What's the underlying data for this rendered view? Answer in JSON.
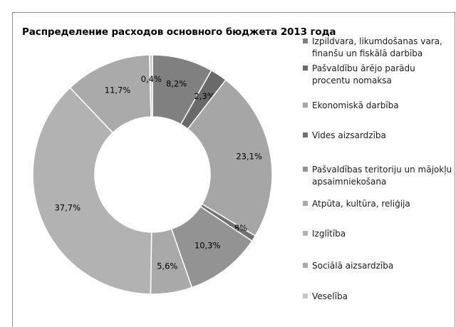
{
  "chart_data": {
    "type": "pie",
    "variant": "donut",
    "title": "Распределение расходов основного бюджета 2013 года",
    "legend_position": "right",
    "series": [
      {
        "name": "Izpildvara, likumdošanas vara, finanšu un fiskālā darbība",
        "value": 8.2,
        "label": "8,2%",
        "color": "#808080"
      },
      {
        "name": "Pašvaldību ārējo parādu procentu nomaksa",
        "value": 2.3,
        "label": "2,3%",
        "color": "#6a6a6a"
      },
      {
        "name": "Ekonomiskā darbība",
        "value": 23.1,
        "label": "23,1%",
        "color": "#a6a6a6"
      },
      {
        "name": "Vides aizsardzība",
        "value": 0.8,
        "label": "0,8%",
        "color": "#707070"
      },
      {
        "name": "Pašvaldības teritoriju un mājokļu apsaimniekošana",
        "value": 10.3,
        "label": "10,3%",
        "color": "#939393"
      },
      {
        "name": "Atpūta, kultūra, reliģija",
        "value": 5.6,
        "label": "5,6%",
        "color": "#a9a9a9"
      },
      {
        "name": "Izglītība",
        "value": 37.7,
        "label": "37,7%",
        "color": "#b2b2b2"
      },
      {
        "name": "Sociālā aizsardzība",
        "value": 11.7,
        "label": "11,7%",
        "color": "#aaaaaa"
      },
      {
        "name": "Veselība",
        "value": 0.4,
        "label": "0,4%",
        "color": "#c8c8c8"
      }
    ]
  }
}
